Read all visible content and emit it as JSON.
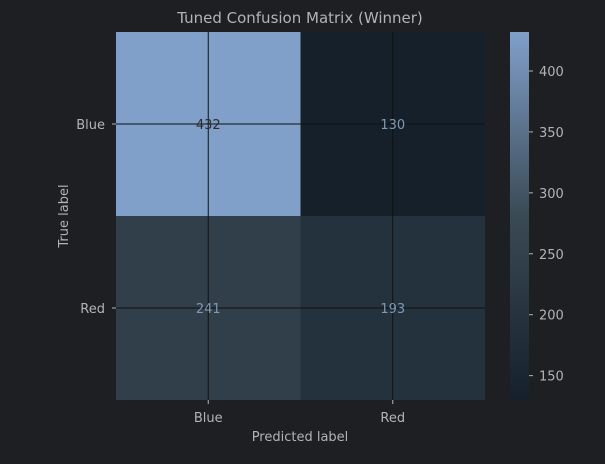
{
  "chart_data": {
    "type": "heatmap",
    "title": "Tuned Confusion Matrix (Winner)",
    "xlabel": "Predicted label",
    "ylabel": "True label",
    "x_categories": [
      "Blue",
      "Red"
    ],
    "y_categories": [
      "Blue",
      "Red"
    ],
    "values": [
      [
        432,
        130
      ],
      [
        241,
        193
      ]
    ],
    "colorbar": {
      "min": 130,
      "max": 432,
      "ticks": [
        150,
        200,
        250,
        300,
        350,
        400
      ],
      "color_low": "#15202b",
      "color_mid": "#3a4a55",
      "color_high": "#809fc9"
    },
    "grid": true
  },
  "colors": {
    "background": "#1e1f22",
    "text": "#b3b3b3",
    "grid": "#101010",
    "cell_text_dark": "#2d2d2d",
    "cell_text_light": "#7f98b4"
  }
}
